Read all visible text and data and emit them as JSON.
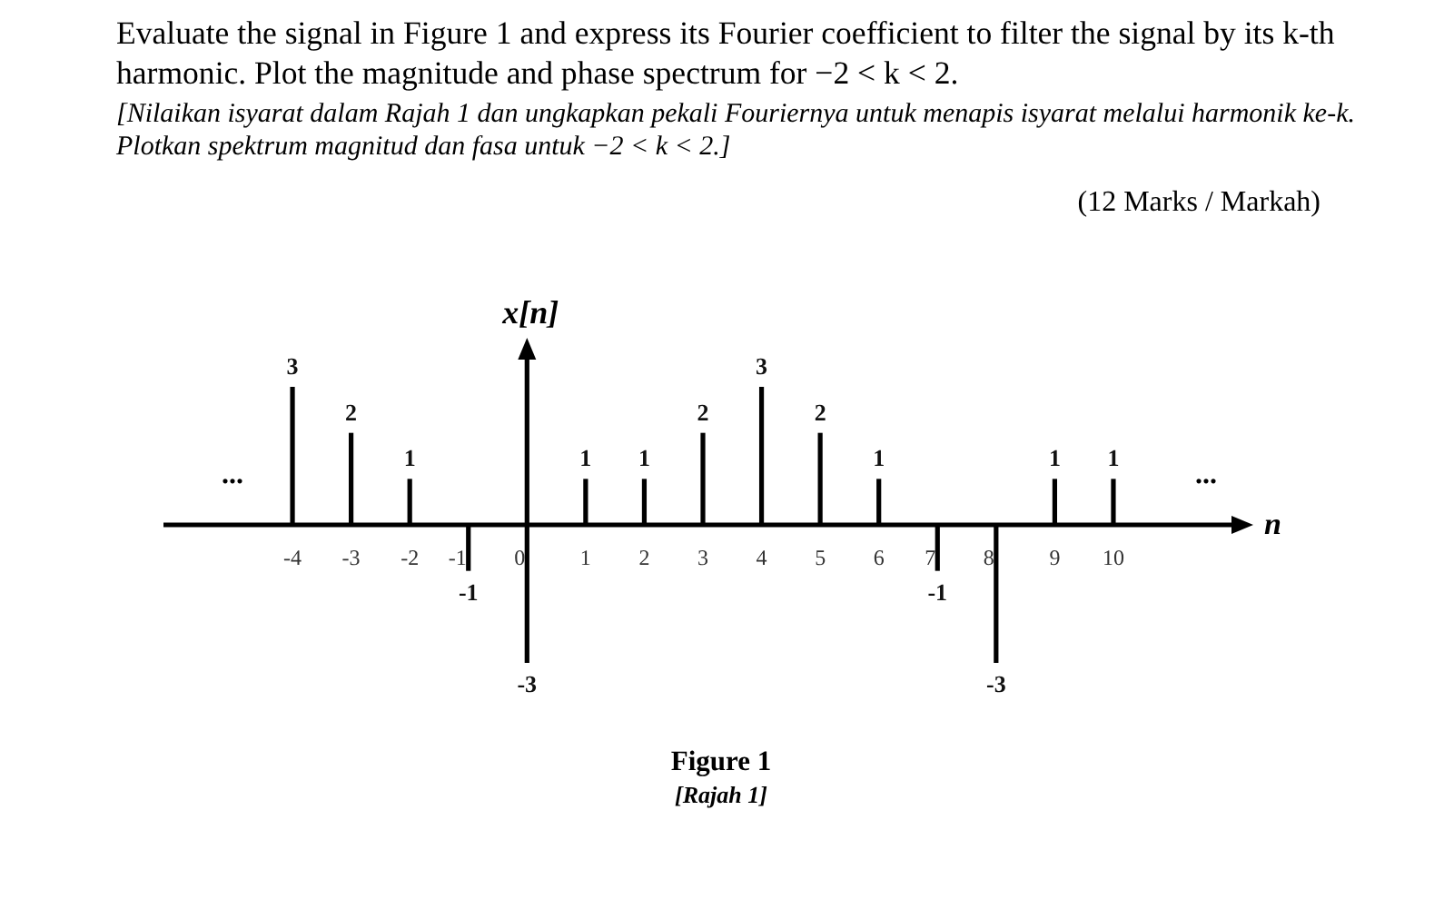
{
  "chart_data": {
    "type": "bar",
    "title": "Evaluate the signal in Figure 1 and express its Fourier coefficient to filter the signal by its k-th harmonic. Plot the magnitude and phase spectrum for −2 < k < 2.",
    "subtitle": "[Nilaikan isyarat dalam Rajah 1 dan ungkapkan pekali Fouriernya untuk menapis isyarat melalui harmonik ke-k. Plotkan spektrum magnitud dan fasa untuk −2 < k < 2.]",
    "xlabel": "n",
    "ylabel": "x[n]",
    "annotations": [
      "(12 Marks / Markah)",
      "Figure 1",
      "[Rajah 1]",
      "...",
      "..."
    ],
    "x": [
      -4,
      -3,
      -2,
      -1,
      0,
      1,
      2,
      3,
      4,
      5,
      6,
      7,
      8,
      9,
      10
    ],
    "values": [
      3,
      2,
      1,
      -1,
      -3,
      1,
      1,
      2,
      3,
      2,
      1,
      -1,
      -3,
      1,
      1
    ],
    "color": "#000000",
    "data_labels": true,
    "xlim": [
      -6.2,
      12.2
    ],
    "xticks": [
      -4,
      -3,
      -2,
      -1,
      0,
      1,
      2,
      3,
      4,
      5,
      6,
      7,
      8,
      9,
      10
    ]
  }
}
